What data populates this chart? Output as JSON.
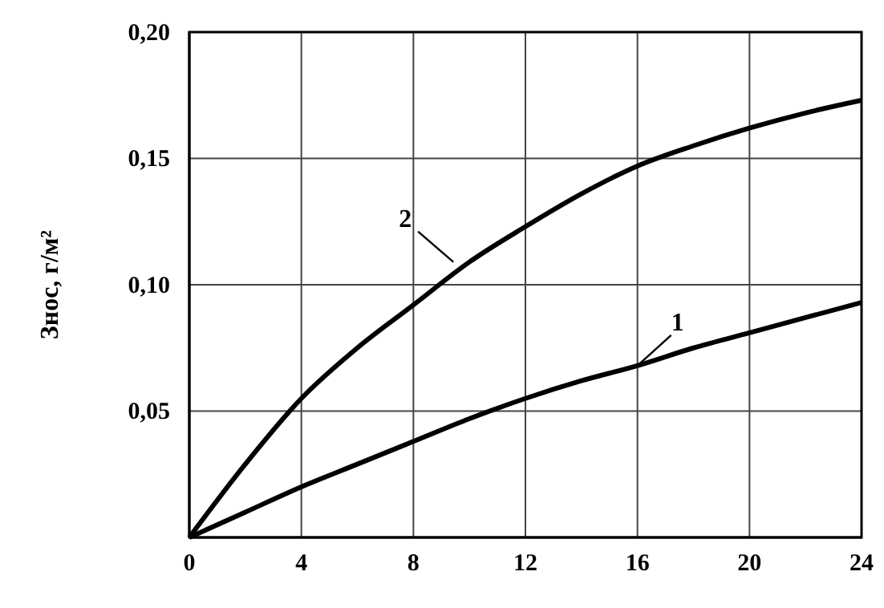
{
  "chart_data": {
    "type": "line",
    "ylabel": "Знос, г/м²",
    "x": [
      0,
      2,
      4,
      6,
      8,
      10,
      12,
      14,
      16,
      18,
      20,
      22,
      24
    ],
    "series": [
      {
        "name": "1",
        "color": "#000000",
        "values": [
          0,
          0.01,
          0.02,
          0.029,
          0.038,
          0.047,
          0.055,
          0.062,
          0.068,
          0.075,
          0.081,
          0.087,
          0.093
        ]
      },
      {
        "name": "2",
        "color": "#000000",
        "values": [
          0,
          0.029,
          0.055,
          0.075,
          0.092,
          0.109,
          0.123,
          0.136,
          0.147,
          0.155,
          0.162,
          0.168,
          0.173
        ]
      }
    ],
    "xlim": [
      0,
      24
    ],
    "xticks": [
      0,
      4,
      8,
      12,
      16,
      20,
      24
    ],
    "ylim": [
      0,
      0.2
    ],
    "yticks": [
      {
        "value": 0.05,
        "label": "0,05"
      },
      {
        "value": 0.1,
        "label": "0,10"
      },
      {
        "value": 0.15,
        "label": "0,15"
      },
      {
        "value": 0.2,
        "label": "0,20"
      }
    ],
    "grid": true,
    "marker": "none",
    "line_style": "solid",
    "legend": false
  }
}
